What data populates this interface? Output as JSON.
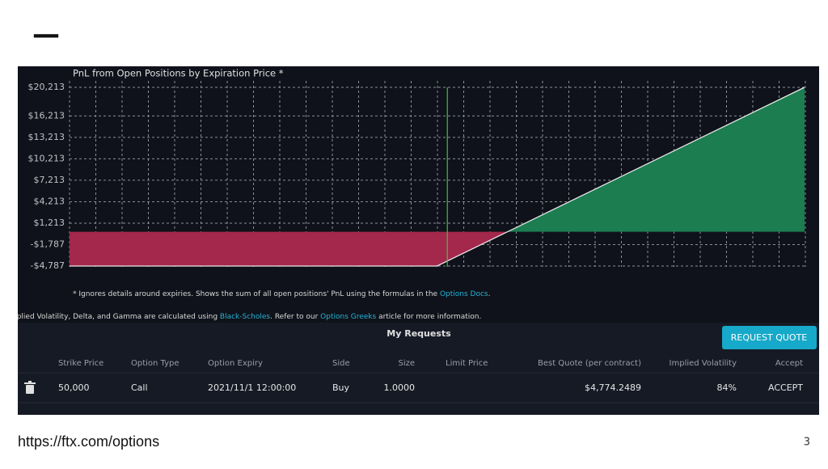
{
  "slide_mark": "—",
  "chart_data": {
    "type": "line",
    "title": "PnL from Open Positions by Expiration Price *",
    "x": [
      25000,
      50000,
      75000
    ],
    "series": [
      {
        "color": "#e8e8e8",
        "values": [
          -4787,
          -4787,
          20213
        ]
      }
    ],
    "loss_color": "#a3284b",
    "profit_color": "#1b7d50",
    "reference_line": {
      "x": 50700,
      "color": "#3cc43c"
    },
    "xlim": [
      25000,
      75000
    ],
    "ylim": [
      -4787,
      20213
    ],
    "yticks": [
      {
        "value": 20213,
        "label": "$20,213"
      },
      {
        "value": 16213,
        "label": "$16,213"
      },
      {
        "value": 13213,
        "label": "$13,213"
      },
      {
        "value": 10213,
        "label": "$10,213"
      },
      {
        "value": 7213,
        "label": "$7,213"
      },
      {
        "value": 4213,
        "label": "$4,213"
      },
      {
        "value": 1213,
        "label": "$1,213"
      },
      {
        "value": -1787,
        "label": "-$1,787"
      },
      {
        "value": -4787,
        "label": "-$4,787"
      }
    ],
    "grid": true
  },
  "notes": {
    "footnote": [
      "* Ignores details around expiries. Shows the sum of all open positions' PnL using the formulas in the ",
      "Options Docs",
      "."
    ],
    "greeks": [
      "nplied Volatility, Delta, and Gamma are calculated using ",
      "Black-Scholes",
      ". Refer to our ",
      "Options Greeks",
      " article for more information."
    ]
  },
  "requests": {
    "title": "My Requests",
    "button": "REQUEST QUOTE",
    "headers": [
      "Strike Price",
      "Option Type",
      "Option Expiry",
      "Side",
      "Size",
      "Limit Price",
      "Best Quote (per contract)",
      "Implied Volatility",
      "Accept"
    ],
    "rows": [
      [
        "50,000",
        "Call",
        "2021/11/1 12:00:00",
        "Buy",
        "1.0000",
        "",
        "$4,774.2489",
        "84%",
        "ACCEPT"
      ]
    ]
  },
  "footer": {
    "url": "https://ftx.com/options",
    "page": "3"
  }
}
